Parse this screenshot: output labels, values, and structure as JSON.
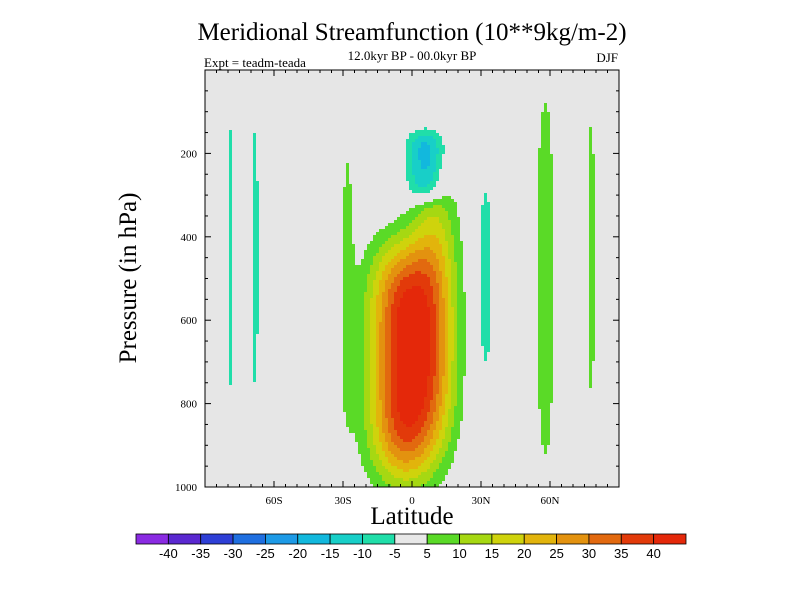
{
  "chart_data": {
    "type": "heatmap",
    "title": "Meridional Streamfunction (10**9kg/m-2)",
    "subtitle_center": "12.0kyr BP - 00.0kyr BP",
    "subtitle_left": "Expt = teadm-teada",
    "subtitle_right": "DJF",
    "xlabel": "Latitude",
    "ylabel": "Pressure (in hPa)",
    "xlim": [
      -90,
      90
    ],
    "ylim": [
      1000,
      0
    ],
    "x_ticks": [
      {
        "value": -60,
        "label": "60S"
      },
      {
        "value": -30,
        "label": "30S"
      },
      {
        "value": 0,
        "label": "0"
      },
      {
        "value": 30,
        "label": "30N"
      },
      {
        "value": 60,
        "label": "60N"
      }
    ],
    "y_ticks": [
      {
        "value": 200,
        "label": "200"
      },
      {
        "value": 400,
        "label": "400"
      },
      {
        "value": 600,
        "label": "600"
      },
      {
        "value": 800,
        "label": "800"
      },
      {
        "value": 1000,
        "label": "1000"
      }
    ],
    "background_color": "#e6e6e6",
    "contour_levels": [
      -40,
      -35,
      -30,
      -25,
      -20,
      -15,
      -10,
      -5,
      5,
      10,
      15,
      20,
      25,
      30,
      35,
      40
    ],
    "level_labels": [
      "-40",
      "-35",
      "-30",
      "-25",
      "-20",
      "-15",
      "-10",
      "-5",
      "5",
      "10",
      "15",
      "20",
      "25",
      "30",
      "35",
      "40"
    ],
    "colors": [
      "#8a2be2",
      "#5a28d0",
      "#2e3fd6",
      "#1f6fe0",
      "#1d9ae6",
      "#12b8dd",
      "#18cfc8",
      "#20dea9",
      "#e8e8e8",
      "#5ada27",
      "#a6d812",
      "#cfd30c",
      "#e2b40c",
      "#e3920f",
      "#e2690f",
      "#e23a0a",
      "#e4280a"
    ],
    "features": [
      {
        "name": "main-positive-cell",
        "lat": -3,
        "pressure": 700,
        "lat_halfwidth": 15,
        "p_halfwidth": 280,
        "peak": 42
      },
      {
        "name": "upper-negative-cell",
        "lat": 6,
        "pressure": 230,
        "lat_halfwidth": 8,
        "p_halfwidth": 85,
        "peak": -20
      },
      {
        "name": "nh-tropical-positive",
        "lat": 10,
        "pressure": 560,
        "lat_halfwidth": 10,
        "p_halfwidth": 320,
        "peak": 16
      },
      {
        "name": "sh-minus10-band-1",
        "lat": -79,
        "pressure": 450,
        "lat_halfwidth": 1.5,
        "p_halfwidth": 400,
        "peak": -7
      },
      {
        "name": "sh-minus10-band-2",
        "lat": -68,
        "pressure": 450,
        "lat_halfwidth": 1.5,
        "p_halfwidth": 430,
        "peak": -7
      },
      {
        "name": "sh-plus-band",
        "lat": -28,
        "pressure": 500,
        "lat_halfwidth": 3,
        "p_halfwidth": 360,
        "peak": 7
      },
      {
        "name": "nh-minus-band",
        "lat": 32,
        "pressure": 500,
        "lat_halfwidth": 3,
        "p_halfwidth": 250,
        "peak": -8
      },
      {
        "name": "nh-plus-band-60N",
        "lat": 58,
        "pressure": 500,
        "lat_halfwidth": 4,
        "p_halfwidth": 480,
        "peak": 9
      },
      {
        "name": "nh-plus-band-75N",
        "lat": 78,
        "pressure": 450,
        "lat_halfwidth": 2,
        "p_halfwidth": 420,
        "peak": 7
      }
    ]
  }
}
